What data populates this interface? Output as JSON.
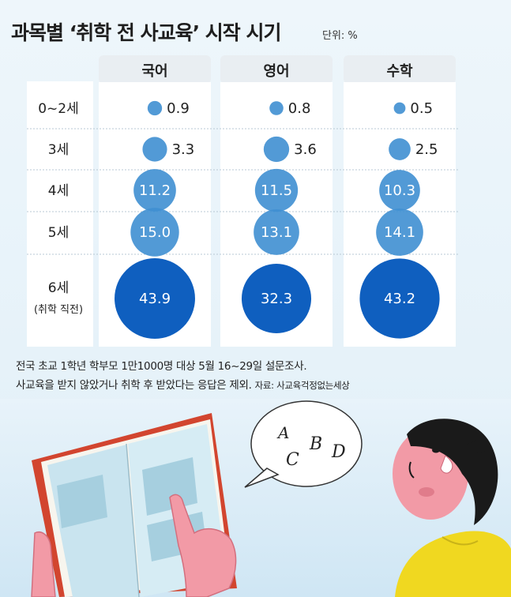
{
  "title": "과목별 ‘취학 전 사교육’ 시작 시기",
  "unit": "단위: %",
  "colors": {
    "bubble_light": "#3f8fd2",
    "bubble_dark": "#0f5fbf",
    "header_bg": "#e9eef2"
  },
  "chart_data": {
    "type": "bubble-table",
    "columns": [
      "국어",
      "영어",
      "수학"
    ],
    "rows": [
      {
        "label": "0~2세",
        "sub": ""
      },
      {
        "label": "3세",
        "sub": ""
      },
      {
        "label": "4세",
        "sub": ""
      },
      {
        "label": "5세",
        "sub": ""
      },
      {
        "label": "6세",
        "sub": "(취학 직전)"
      }
    ],
    "values": [
      [
        0.9,
        0.8,
        0.5
      ],
      [
        3.3,
        3.6,
        2.5
      ],
      [
        11.2,
        11.5,
        10.3
      ],
      [
        15.0,
        13.1,
        14.1
      ],
      [
        43.9,
        32.3,
        43.2
      ]
    ],
    "value_labels": [
      [
        "0.9",
        "0.8",
        "0.5"
      ],
      [
        "3.3",
        "3.6",
        "2.5"
      ],
      [
        "11.2",
        "11.5",
        "10.3"
      ],
      [
        "15.0",
        "13.1",
        "14.1"
      ],
      [
        "43.9",
        "32.3",
        "43.2"
      ]
    ]
  },
  "notes": {
    "line1": "전국 초교 1학년 학부모 1만1000명 대상 5월 16~29일 설문조사.",
    "line2": "사교육을 받지 않았거나 취학 후 받았다는 응답은 제외.",
    "source": "자료: 사교육걱정없는세상"
  },
  "illustration": {
    "speech_letters": [
      "A",
      "C",
      "B",
      "D"
    ]
  }
}
